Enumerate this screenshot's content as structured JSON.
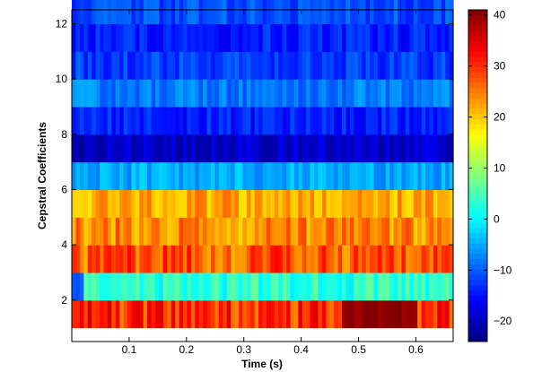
{
  "chart_data": {
    "type": "heatmap",
    "title": "",
    "xlabel": "Time (s)",
    "ylabel": "Cepstral Coefficients",
    "xlim": [
      0.0,
      0.665
    ],
    "ylim": [
      0.5,
      12.5
    ],
    "xticks": [
      0.1,
      0.2,
      0.3,
      0.4,
      0.5,
      0.6
    ],
    "xtick_labels": [
      "0.1",
      "0.2",
      "0.3",
      "0.4",
      "0.5",
      "0.6"
    ],
    "yticks": [
      2,
      4,
      6,
      8,
      10,
      12
    ],
    "ytick_labels": [
      "2",
      "4",
      "6",
      "8",
      "10",
      "12"
    ],
    "frames": 96,
    "coefficients": [
      1,
      2,
      3,
      4,
      5,
      6,
      7,
      8,
      9,
      10,
      11,
      12
    ],
    "row_mean_values": [
      30,
      3,
      27,
      24,
      22,
      -5,
      -19,
      -14,
      -8,
      -12,
      -14,
      -11
    ],
    "row_variation": [
      6,
      4,
      6,
      5,
      4,
      3,
      3,
      3,
      3,
      3,
      3,
      3
    ],
    "notable_features": [
      {
        "coefficient": 1,
        "time_range": [
          0.47,
          0.6
        ],
        "value": 40,
        "note": "darkest red region"
      },
      {
        "coefficient": 7,
        "time_range": [
          0.0,
          0.02
        ],
        "value": -22,
        "note": "dark blue start"
      },
      {
        "coefficient": 2,
        "time_range": [
          0.0,
          0.02
        ],
        "value": -10,
        "note": "blue start"
      }
    ],
    "colorbar": {
      "colormap": "jet",
      "range": [
        -24,
        41
      ],
      "ticks": [
        -20,
        -10,
        0,
        10,
        20,
        30,
        40
      ],
      "tick_labels": [
        "−20",
        "−10",
        "0",
        "10",
        "20",
        "30",
        "40"
      ]
    }
  }
}
